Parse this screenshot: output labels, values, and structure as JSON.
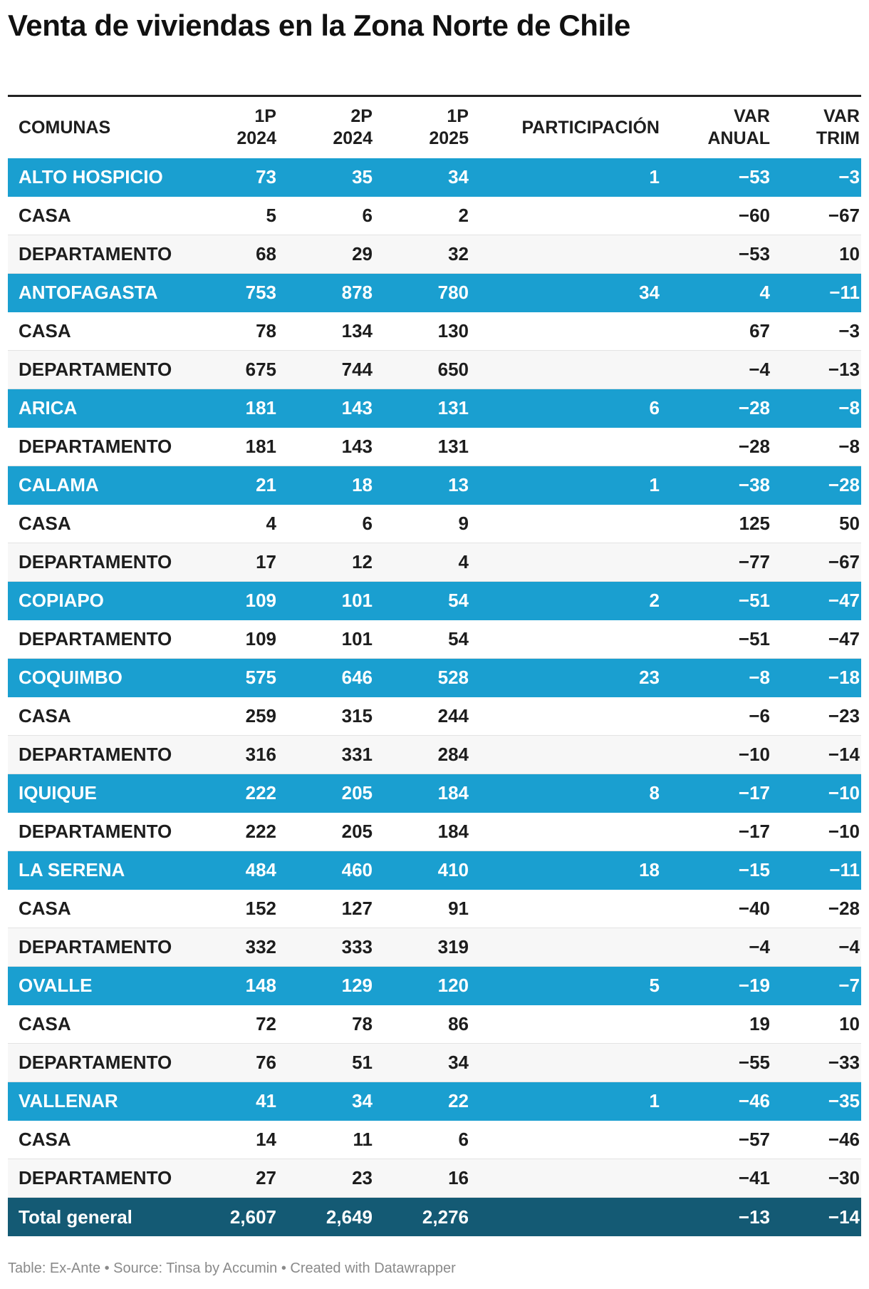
{
  "title": "Venta de viviendas en la Zona Norte de Chile",
  "footer": "Table: Ex-Ante • Source: Tinsa by Accumin • Created with Datawrapper",
  "colors": {
    "group_row": "#1a9fd0",
    "total_row": "#145a74",
    "alt_row": "#f7f7f7"
  },
  "chart_data": {
    "type": "table",
    "columns": [
      {
        "l1": "COMUNAS",
        "l2": ""
      },
      {
        "l1": "1P",
        "l2": "2024"
      },
      {
        "l1": "2P",
        "l2": "2024"
      },
      {
        "l1": "1P",
        "l2": "2025"
      },
      {
        "l1": "PARTICIPACIÓN",
        "l2": ""
      },
      {
        "l1": "VAR",
        "l2": "ANUAL"
      },
      {
        "l1": "VAR",
        "l2": "TRIM"
      }
    ],
    "rows": [
      {
        "kind": "group",
        "cells": [
          "ALTO HOSPICIO",
          "73",
          "35",
          "34",
          "1",
          "−53",
          "−3"
        ]
      },
      {
        "kind": "sub",
        "cells": [
          "CASA",
          "5",
          "6",
          "2",
          "",
          "−60",
          "−67"
        ]
      },
      {
        "kind": "sub",
        "cells": [
          "DEPARTAMENTO",
          "68",
          "29",
          "32",
          "",
          "−53",
          "10"
        ]
      },
      {
        "kind": "group",
        "cells": [
          "ANTOFAGASTA",
          "753",
          "878",
          "780",
          "34",
          "4",
          "−11"
        ]
      },
      {
        "kind": "sub",
        "cells": [
          "CASA",
          "78",
          "134",
          "130",
          "",
          "67",
          "−3"
        ]
      },
      {
        "kind": "sub",
        "cells": [
          "DEPARTAMENTO",
          "675",
          "744",
          "650",
          "",
          "−4",
          "−13"
        ]
      },
      {
        "kind": "group",
        "cells": [
          "ARICA",
          "181",
          "143",
          "131",
          "6",
          "−28",
          "−8"
        ]
      },
      {
        "kind": "sub",
        "cells": [
          "DEPARTAMENTO",
          "181",
          "143",
          "131",
          "",
          "−28",
          "−8"
        ]
      },
      {
        "kind": "group",
        "cells": [
          "CALAMA",
          "21",
          "18",
          "13",
          "1",
          "−38",
          "−28"
        ]
      },
      {
        "kind": "sub",
        "cells": [
          "CASA",
          "4",
          "6",
          "9",
          "",
          "125",
          "50"
        ]
      },
      {
        "kind": "sub",
        "cells": [
          "DEPARTAMENTO",
          "17",
          "12",
          "4",
          "",
          "−77",
          "−67"
        ]
      },
      {
        "kind": "group",
        "cells": [
          "COPIAPO",
          "109",
          "101",
          "54",
          "2",
          "−51",
          "−47"
        ]
      },
      {
        "kind": "sub",
        "cells": [
          "DEPARTAMENTO",
          "109",
          "101",
          "54",
          "",
          "−51",
          "−47"
        ]
      },
      {
        "kind": "group",
        "cells": [
          "COQUIMBO",
          "575",
          "646",
          "528",
          "23",
          "−8",
          "−18"
        ]
      },
      {
        "kind": "sub",
        "cells": [
          "CASA",
          "259",
          "315",
          "244",
          "",
          "−6",
          "−23"
        ]
      },
      {
        "kind": "sub",
        "cells": [
          "DEPARTAMENTO",
          "316",
          "331",
          "284",
          "",
          "−10",
          "−14"
        ]
      },
      {
        "kind": "group",
        "cells": [
          "IQUIQUE",
          "222",
          "205",
          "184",
          "8",
          "−17",
          "−10"
        ]
      },
      {
        "kind": "sub",
        "cells": [
          "DEPARTAMENTO",
          "222",
          "205",
          "184",
          "",
          "−17",
          "−10"
        ]
      },
      {
        "kind": "group",
        "cells": [
          "LA SERENA",
          "484",
          "460",
          "410",
          "18",
          "−15",
          "−11"
        ]
      },
      {
        "kind": "sub",
        "cells": [
          "CASA",
          "152",
          "127",
          "91",
          "",
          "−40",
          "−28"
        ]
      },
      {
        "kind": "sub",
        "cells": [
          "DEPARTAMENTO",
          "332",
          "333",
          "319",
          "",
          "−4",
          "−4"
        ]
      },
      {
        "kind": "group",
        "cells": [
          "OVALLE",
          "148",
          "129",
          "120",
          "5",
          "−19",
          "−7"
        ]
      },
      {
        "kind": "sub",
        "cells": [
          "CASA",
          "72",
          "78",
          "86",
          "",
          "19",
          "10"
        ]
      },
      {
        "kind": "sub",
        "cells": [
          "DEPARTAMENTO",
          "76",
          "51",
          "34",
          "",
          "−55",
          "−33"
        ]
      },
      {
        "kind": "group",
        "cells": [
          "VALLENAR",
          "41",
          "34",
          "22",
          "1",
          "−46",
          "−35"
        ]
      },
      {
        "kind": "sub",
        "cells": [
          "CASA",
          "14",
          "11",
          "6",
          "",
          "−57",
          "−46"
        ]
      },
      {
        "kind": "sub",
        "cells": [
          "DEPARTAMENTO",
          "27",
          "23",
          "16",
          "",
          "−41",
          "−30"
        ]
      },
      {
        "kind": "total",
        "cells": [
          "Total general",
          "2,607",
          "2,649",
          "2,276",
          "",
          "−13",
          "−14"
        ]
      }
    ]
  }
}
